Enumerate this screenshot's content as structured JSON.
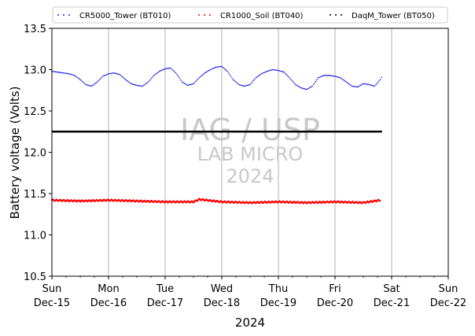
{
  "chart_data": {
    "type": "scatter",
    "title": "",
    "xlabel": "2024",
    "ylabel": "Battery voltage (Volts)",
    "ylim": [
      10.5,
      13.5
    ],
    "xlim": [
      "2024-12-15",
      "2024-12-22"
    ],
    "y_ticks": [
      "10.5",
      "11.0",
      "11.5",
      "12.0",
      "12.5",
      "13.0",
      "13.5"
    ],
    "x_ticks": [
      {
        "day": "Sun",
        "date": "Dec-15"
      },
      {
        "day": "Mon",
        "date": "Dec-16"
      },
      {
        "day": "Tue",
        "date": "Dec-17"
      },
      {
        "day": "Wed",
        "date": "Dec-18"
      },
      {
        "day": "Thu",
        "date": "Dec-19"
      },
      {
        "day": "Fri",
        "date": "Dec-20"
      },
      {
        "day": "Sat",
        "date": "Dec-21"
      },
      {
        "day": "Sun",
        "date": "Dec-22"
      }
    ],
    "grid": "vertical",
    "legend_position": "top",
    "series": [
      {
        "name": "CR5000_Tower (BT010)",
        "color": "#2222ee",
        "x_days_from_start": [
          0.0,
          0.1,
          0.2,
          0.3,
          0.4,
          0.5,
          0.6,
          0.7,
          0.8,
          0.9,
          1.0,
          1.1,
          1.2,
          1.3,
          1.4,
          1.5,
          1.6,
          1.7,
          1.8,
          1.9,
          2.0,
          2.1,
          2.2,
          2.3,
          2.4,
          2.5,
          2.6,
          2.7,
          2.8,
          2.9,
          3.0,
          3.1,
          3.2,
          3.3,
          3.4,
          3.5,
          3.6,
          3.7,
          3.8,
          3.9,
          4.0,
          4.1,
          4.2,
          4.3,
          4.4,
          4.5,
          4.6,
          4.7,
          4.8,
          4.9,
          5.0,
          5.1,
          5.2,
          5.3,
          5.4,
          5.5,
          5.6,
          5.7,
          5.8,
          5.83
        ],
        "values": [
          12.98,
          12.97,
          12.96,
          12.95,
          12.93,
          12.88,
          12.82,
          12.8,
          12.85,
          12.92,
          12.95,
          12.96,
          12.94,
          12.88,
          12.83,
          12.81,
          12.8,
          12.85,
          12.93,
          12.98,
          13.01,
          13.02,
          12.95,
          12.85,
          12.81,
          12.83,
          12.9,
          12.96,
          13.0,
          13.03,
          13.04,
          12.98,
          12.88,
          12.82,
          12.8,
          12.82,
          12.9,
          12.95,
          12.98,
          13.0,
          12.99,
          12.97,
          12.9,
          12.82,
          12.78,
          12.76,
          12.8,
          12.9,
          12.93,
          12.93,
          12.92,
          12.9,
          12.85,
          12.8,
          12.79,
          12.83,
          12.82,
          12.8,
          12.88,
          12.92
        ]
      },
      {
        "name": "CR1000_Soil (BT040)",
        "color": "#ff0000",
        "x_days_from_start": [
          0.0,
          0.5,
          1.0,
          1.5,
          2.0,
          2.5,
          2.6,
          3.0,
          3.5,
          4.0,
          4.5,
          5.0,
          5.5,
          5.8
        ],
        "values": [
          11.42,
          11.41,
          11.42,
          11.41,
          11.4,
          11.4,
          11.43,
          11.4,
          11.39,
          11.4,
          11.39,
          11.4,
          11.39,
          11.42
        ]
      },
      {
        "name": "DaqM_Tower (BT050)",
        "color": "#000000",
        "x_days_from_start": [
          0.0,
          1.0,
          2.0,
          3.0,
          4.0,
          5.0,
          5.83
        ],
        "values": [
          12.25,
          12.25,
          12.25,
          12.25,
          12.25,
          12.25,
          12.25
        ]
      }
    ],
    "watermark": {
      "line1": "IAG / USP",
      "line2": "LAB MICRO",
      "line3": "2024"
    }
  }
}
